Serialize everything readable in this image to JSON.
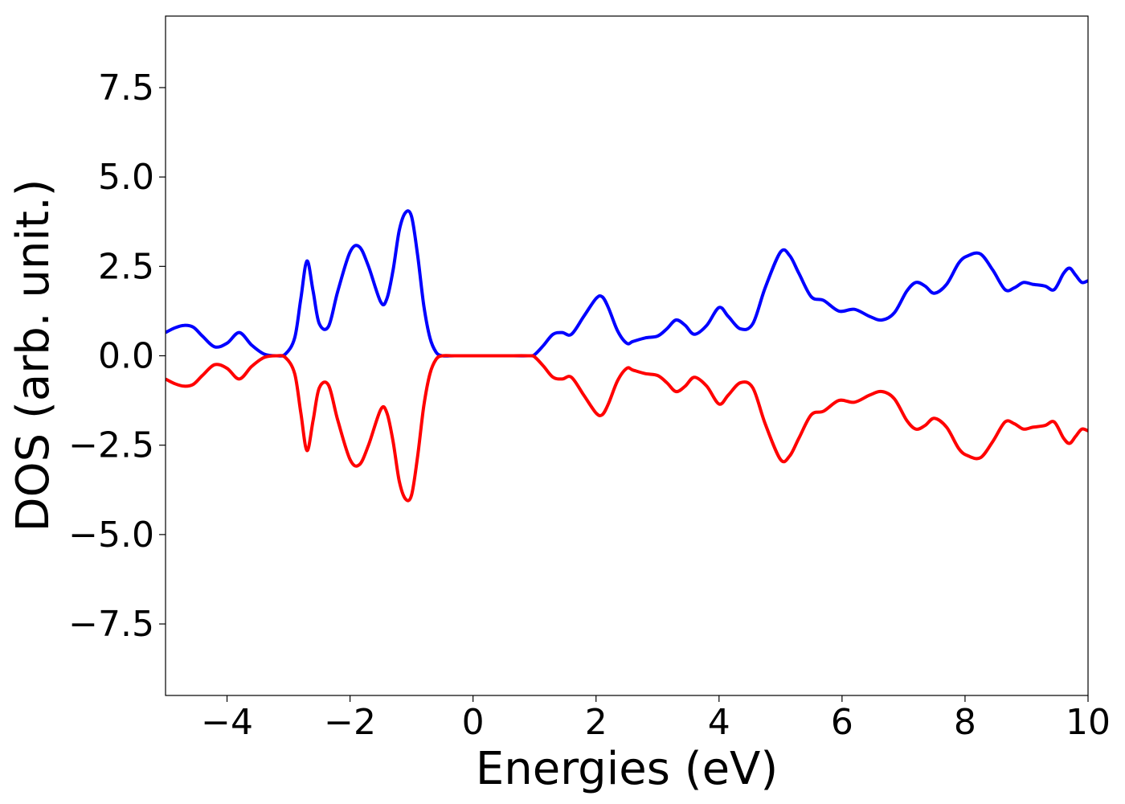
{
  "chart_data": {
    "type": "line",
    "title": "",
    "xlabel": "Energies (eV)",
    "ylabel": "DOS (arb. unit.)",
    "xlim": [
      -5,
      10
    ],
    "ylim": [
      -9.5,
      9.5
    ],
    "xticks": [
      -4,
      -2,
      0,
      2,
      4,
      6,
      8,
      10
    ],
    "yticks": [
      -7.5,
      -5.0,
      -2.5,
      0.0,
      2.5,
      5.0,
      7.5
    ],
    "xtick_labels": [
      "−4",
      "−2",
      "0",
      "2",
      "4",
      "6",
      "8",
      "10"
    ],
    "ytick_labels": [
      "−7.5",
      "−5.0",
      "−2.5",
      "0.0",
      "2.5",
      "5.0",
      "7.5"
    ],
    "grid": false,
    "legend": "none",
    "series": [
      {
        "color": "#0000ff",
        "x": [
          -5.0,
          -4.85,
          -4.7,
          -4.55,
          -4.4,
          -4.2,
          -4.0,
          -3.8,
          -3.6,
          -3.4,
          -3.2,
          -3.05,
          -2.9,
          -2.8,
          -2.7,
          -2.6,
          -2.5,
          -2.35,
          -2.2,
          -2.0,
          -1.85,
          -1.7,
          -1.5,
          -1.4,
          -1.3,
          -1.2,
          -1.1,
          -1.0,
          -0.9,
          -0.8,
          -0.7,
          -0.6,
          -0.5,
          -0.3,
          0.0,
          0.5,
          0.9,
          1.0,
          1.15,
          1.3,
          1.45,
          1.6,
          1.8,
          2.0,
          2.1,
          2.2,
          2.35,
          2.5,
          2.6,
          2.8,
          3.0,
          3.15,
          3.3,
          3.45,
          3.6,
          3.8,
          4.0,
          4.15,
          4.35,
          4.55,
          4.75,
          5.0,
          5.15,
          5.3,
          5.5,
          5.7,
          5.95,
          6.2,
          6.45,
          6.65,
          6.85,
          7.05,
          7.2,
          7.35,
          7.5,
          7.7,
          7.9,
          8.05,
          8.25,
          8.45,
          8.65,
          8.8,
          8.95,
          9.1,
          9.3,
          9.45,
          9.6,
          9.7,
          9.8,
          9.9,
          10.0
        ],
        "y": [
          0.65,
          0.78,
          0.85,
          0.8,
          0.55,
          0.25,
          0.35,
          0.65,
          0.3,
          0.05,
          0.0,
          0.05,
          0.5,
          1.6,
          2.65,
          1.8,
          0.9,
          0.82,
          1.8,
          2.9,
          3.05,
          2.5,
          1.5,
          1.6,
          2.4,
          3.5,
          4.0,
          3.9,
          2.8,
          1.4,
          0.5,
          0.1,
          0.0,
          0.0,
          0.0,
          0.0,
          0.0,
          0.03,
          0.3,
          0.6,
          0.65,
          0.6,
          1.1,
          1.6,
          1.65,
          1.35,
          0.7,
          0.35,
          0.4,
          0.5,
          0.55,
          0.75,
          1.0,
          0.85,
          0.6,
          0.85,
          1.35,
          1.1,
          0.75,
          0.9,
          1.9,
          2.9,
          2.8,
          2.3,
          1.65,
          1.55,
          1.25,
          1.3,
          1.1,
          1.0,
          1.2,
          1.8,
          2.05,
          1.95,
          1.75,
          2.0,
          2.6,
          2.8,
          2.85,
          2.4,
          1.85,
          1.9,
          2.05,
          2.0,
          1.95,
          1.85,
          2.3,
          2.45,
          2.25,
          2.05,
          2.1
        ]
      },
      {
        "color": "#ff0000",
        "x": [
          -5.0,
          -4.85,
          -4.7,
          -4.55,
          -4.4,
          -4.2,
          -4.0,
          -3.8,
          -3.6,
          -3.4,
          -3.2,
          -3.05,
          -2.9,
          -2.8,
          -2.7,
          -2.6,
          -2.5,
          -2.35,
          -2.2,
          -2.0,
          -1.85,
          -1.7,
          -1.5,
          -1.4,
          -1.3,
          -1.2,
          -1.1,
          -1.0,
          -0.9,
          -0.8,
          -0.7,
          -0.6,
          -0.5,
          -0.3,
          0.0,
          0.5,
          0.9,
          1.0,
          1.15,
          1.3,
          1.45,
          1.6,
          1.8,
          2.0,
          2.1,
          2.2,
          2.35,
          2.5,
          2.6,
          2.8,
          3.0,
          3.15,
          3.3,
          3.45,
          3.6,
          3.8,
          4.0,
          4.15,
          4.35,
          4.55,
          4.75,
          5.0,
          5.15,
          5.3,
          5.5,
          5.7,
          5.95,
          6.2,
          6.45,
          6.65,
          6.85,
          7.05,
          7.2,
          7.35,
          7.5,
          7.7,
          7.9,
          8.05,
          8.25,
          8.45,
          8.65,
          8.8,
          8.95,
          9.1,
          9.3,
          9.45,
          9.6,
          9.7,
          9.8,
          9.9,
          10.0
        ],
        "y": [
          -0.65,
          -0.78,
          -0.85,
          -0.8,
          -0.55,
          -0.25,
          -0.35,
          -0.65,
          -0.3,
          -0.05,
          0.0,
          -0.05,
          -0.5,
          -1.6,
          -2.65,
          -1.8,
          -0.9,
          -0.82,
          -1.8,
          -2.9,
          -3.05,
          -2.5,
          -1.5,
          -1.6,
          -2.4,
          -3.5,
          -4.0,
          -3.9,
          -2.8,
          -1.4,
          -0.5,
          -0.1,
          0.0,
          0.0,
          0.0,
          0.0,
          0.0,
          -0.03,
          -0.3,
          -0.6,
          -0.65,
          -0.6,
          -1.1,
          -1.6,
          -1.65,
          -1.35,
          -0.7,
          -0.35,
          -0.4,
          -0.5,
          -0.55,
          -0.75,
          -1.0,
          -0.85,
          -0.6,
          -0.85,
          -1.35,
          -1.1,
          -0.75,
          -0.9,
          -1.9,
          -2.9,
          -2.8,
          -2.3,
          -1.65,
          -1.55,
          -1.25,
          -1.3,
          -1.1,
          -1.0,
          -1.2,
          -1.8,
          -2.05,
          -1.95,
          -1.75,
          -2.0,
          -2.6,
          -2.8,
          -2.85,
          -2.4,
          -1.85,
          -1.9,
          -2.05,
          -2.0,
          -1.95,
          -1.85,
          -2.3,
          -2.45,
          -2.25,
          -2.05,
          -2.1
        ]
      }
    ]
  }
}
